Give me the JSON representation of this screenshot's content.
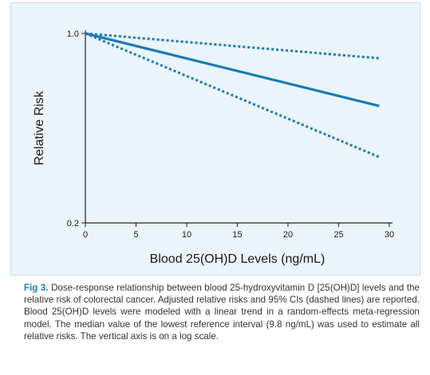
{
  "figure": {
    "label": "Fig 3.",
    "caption": "Dose-response relationship between blood 25-hydroxyvitamin D [25(OH)D] levels and the relative risk of colorectal cancer. Adjusted relative risks and 95% CIs (dashed lines) are reported. Blood 25(OH)D levels were modeled with a linear trend in a random-effects meta-regression model. The median value of the lowest reference interval (9.8 ng/mL) was used to estimate all relative risks. The vertical axis is on a log scale."
  },
  "chart_data": {
    "type": "line",
    "title": "",
    "xlabel": "Blood 25(OH)D Levels (ng/mL)",
    "ylabel": "Relative Risk",
    "xlim": [
      0,
      30
    ],
    "ylim": [
      0.2,
      1.0
    ],
    "y_scale": "log",
    "x_ticks": [
      0,
      5,
      10,
      15,
      20,
      25,
      30
    ],
    "y_ticks": [
      0.2,
      1.0
    ],
    "y_tick_labels": [
      "0.2",
      "1.0"
    ],
    "grid": false,
    "series": [
      {
        "role": "estimate",
        "style": "solid",
        "x": [
          0,
          29
        ],
        "y": [
          1.0,
          0.54
        ]
      },
      {
        "role": "ci_upper",
        "style": "dashed",
        "x": [
          0,
          29
        ],
        "y": [
          1.0,
          0.81
        ]
      },
      {
        "role": "ci_lower",
        "style": "dashed",
        "x": [
          0,
          29
        ],
        "y": [
          1.0,
          0.35
        ]
      }
    ],
    "line_color": "#1a7ab5"
  }
}
